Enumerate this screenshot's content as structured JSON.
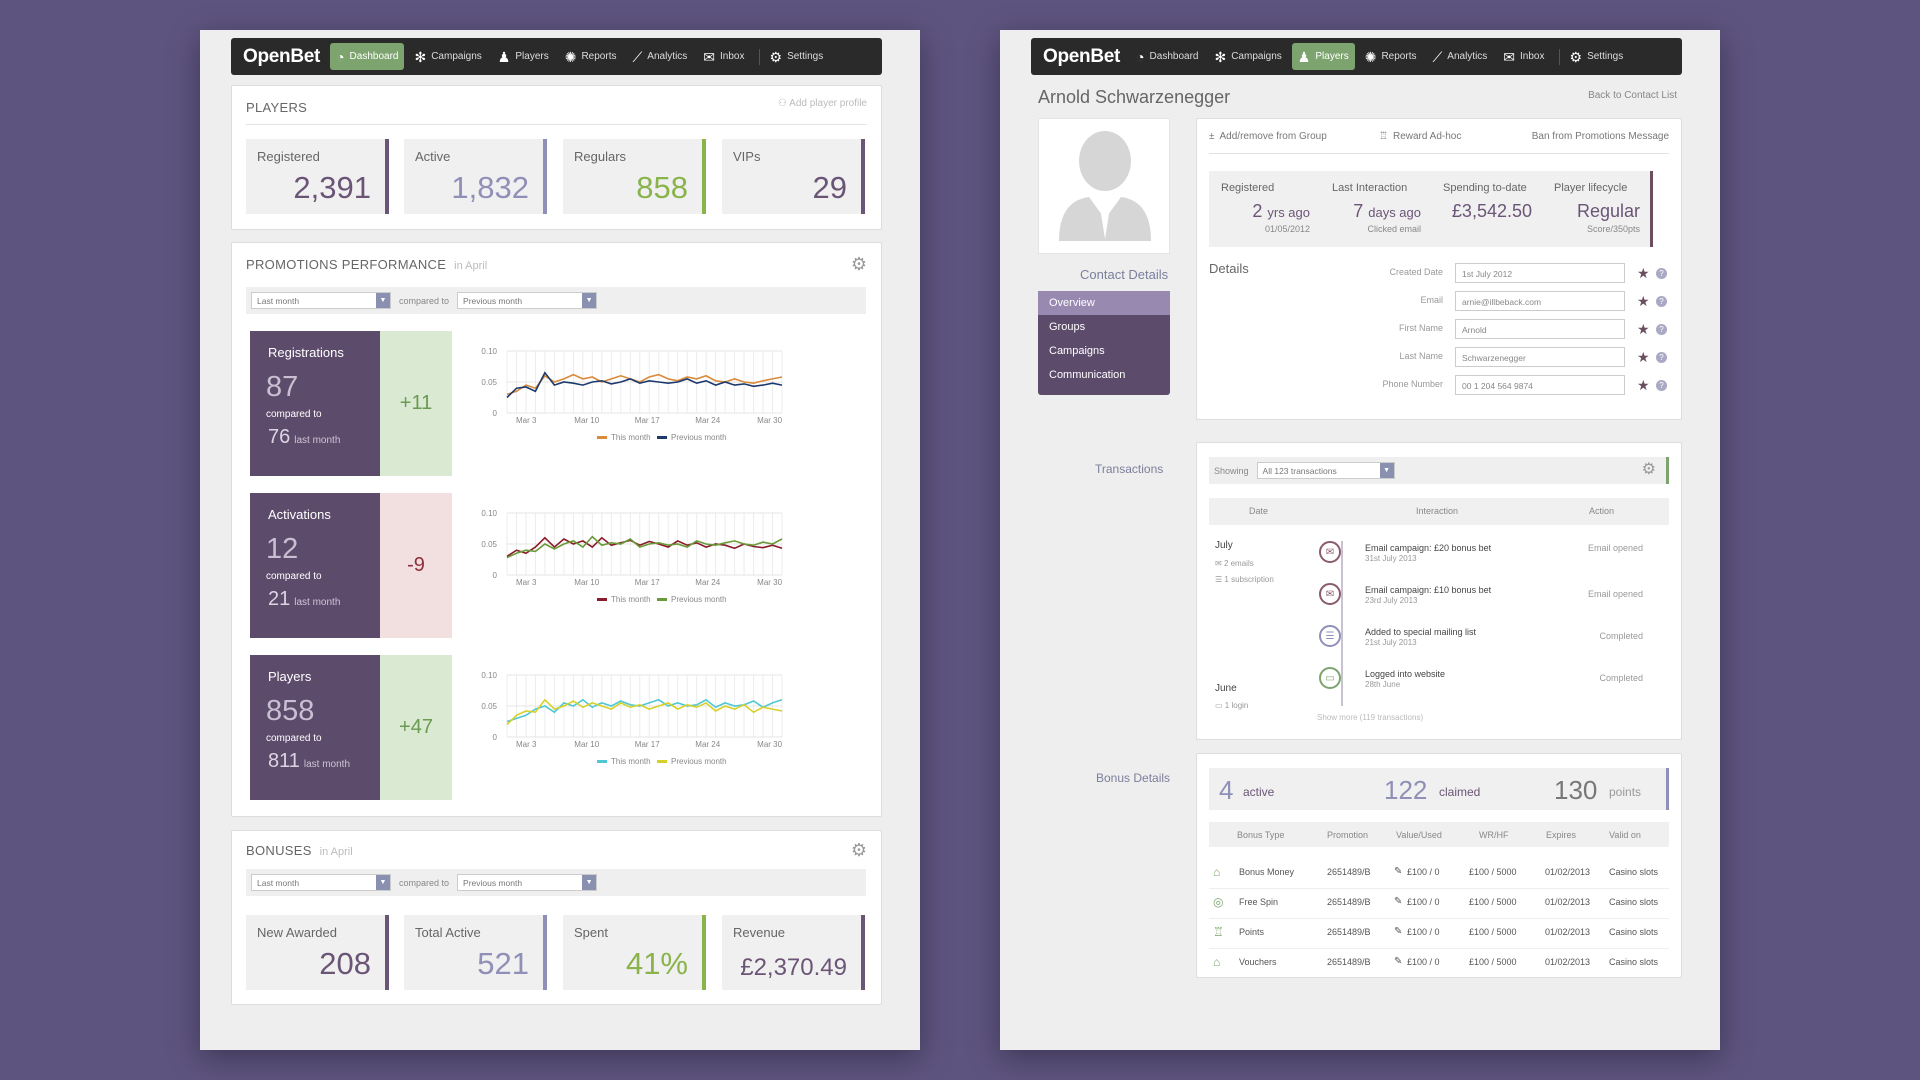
{
  "left": {
    "nav": {
      "logo": "OpenBet",
      "items": [
        {
          "label": "Dashboard",
          "icon": "dashboard-icon",
          "active": true
        },
        {
          "label": "Campaigns",
          "icon": "gear-icon"
        },
        {
          "label": "Players",
          "icon": "user-icon"
        },
        {
          "label": "Reports",
          "icon": "badge-icon"
        },
        {
          "label": "Analytics",
          "icon": "analytics-icon"
        },
        {
          "label": "Inbox",
          "icon": "mail-icon"
        },
        {
          "label": "Settings",
          "icon": "gear-icon"
        }
      ]
    },
    "players": {
      "title": "PLAYERS",
      "add_link": "Add player profile",
      "stats": [
        {
          "label": "Registered",
          "value": "2,391",
          "color": "#6b5577"
        },
        {
          "label": "Active",
          "value": "1,832",
          "color": "#8f8fb7"
        },
        {
          "label": "Regulars",
          "value": "858",
          "color": "#8ab34c"
        },
        {
          "label": "VIPs",
          "value": "29",
          "color": "#6b5577"
        }
      ]
    },
    "promotions": {
      "title": "PROMOTIONS PERFORMANCE",
      "subtitle": "in April",
      "filter": {
        "left": "Last month",
        "compared": "compared to",
        "right": "Previous month"
      },
      "blocks": [
        {
          "title": "Registrations",
          "value": "87",
          "compared": "compared to",
          "prev": "76",
          "prev_label": "last month",
          "delta": "+11"
        },
        {
          "title": "Activations",
          "value": "12",
          "compared": "compared to",
          "prev": "21",
          "prev_label": "last month",
          "delta": "-9"
        },
        {
          "title": "Players",
          "value": "858",
          "compared": "compared to",
          "prev": "811",
          "prev_label": "last month",
          "delta": "+47"
        }
      ]
    },
    "bonuses": {
      "title": "BONUSES",
      "subtitle": "in April",
      "filter": {
        "left": "Last month",
        "compared": "compared to",
        "right": "Previous month"
      },
      "stats": [
        {
          "label": "New Awarded",
          "value": "208",
          "color": "#6b5577"
        },
        {
          "label": "Total Active",
          "value": "521",
          "color": "#8f8fb7"
        },
        {
          "label": "Spent",
          "value": "41%",
          "color": "#8ab34c"
        },
        {
          "label": "Revenue",
          "value": "£2,370.49",
          "color": "#6b5577"
        }
      ]
    }
  },
  "chart_data": [
    {
      "type": "line",
      "x_ticks": [
        "Mar 3",
        "Mar 10",
        "Mar 17",
        "Mar 24",
        "Mar 30"
      ],
      "y_ticks": [
        "0.10",
        "0.05",
        "0"
      ],
      "ylim": [
        0,
        0.1
      ],
      "grid": true,
      "series": [
        {
          "name": "This month",
          "color": "#d98a3a",
          "values": [
            0.03,
            0.035,
            0.045,
            0.04,
            0.06,
            0.05,
            0.055,
            0.062,
            0.055,
            0.058,
            0.05,
            0.055,
            0.06,
            0.055,
            0.05,
            0.058,
            0.062,
            0.055,
            0.052,
            0.058,
            0.055,
            0.06,
            0.052,
            0.05,
            0.055,
            0.05,
            0.048,
            0.052,
            0.055,
            0.058
          ]
        },
        {
          "name": "Previous month",
          "color": "#1d3a6e",
          "values": [
            0.025,
            0.04,
            0.042,
            0.035,
            0.065,
            0.045,
            0.05,
            0.048,
            0.045,
            0.05,
            0.052,
            0.047,
            0.05,
            0.055,
            0.048,
            0.052,
            0.05,
            0.048,
            0.05,
            0.055,
            0.048,
            0.052,
            0.045,
            0.05,
            0.045,
            0.047,
            0.043,
            0.045,
            0.048,
            0.045
          ]
        }
      ]
    },
    {
      "type": "line",
      "x_ticks": [
        "Mar 3",
        "Mar 10",
        "Mar 17",
        "Mar 24",
        "Mar 30"
      ],
      "y_ticks": [
        "0.10",
        "0.05",
        "0"
      ],
      "ylim": [
        0,
        0.1
      ],
      "grid": true,
      "series": [
        {
          "name": "This month",
          "color": "#8a1d2a",
          "values": [
            0.03,
            0.04,
            0.035,
            0.045,
            0.06,
            0.045,
            0.058,
            0.05,
            0.055,
            0.045,
            0.06,
            0.048,
            0.052,
            0.056,
            0.048,
            0.054,
            0.05,
            0.045,
            0.055,
            0.048,
            0.052,
            0.045,
            0.05,
            0.048,
            0.043,
            0.05,
            0.046,
            0.044,
            0.048,
            0.043
          ]
        },
        {
          "name": "Previous month",
          "color": "#6a9b3a",
          "values": [
            0.028,
            0.035,
            0.04,
            0.038,
            0.05,
            0.042,
            0.05,
            0.055,
            0.045,
            0.062,
            0.048,
            0.052,
            0.05,
            0.058,
            0.045,
            0.05,
            0.052,
            0.048,
            0.05,
            0.045,
            0.055,
            0.05,
            0.048,
            0.052,
            0.055,
            0.05,
            0.048,
            0.053,
            0.05,
            0.058
          ]
        }
      ]
    },
    {
      "type": "line",
      "x_ticks": [
        "Mar 3",
        "Mar 10",
        "Mar 17",
        "Mar 24",
        "Mar 30"
      ],
      "y_ticks": [
        "0.10",
        "0.05",
        "0"
      ],
      "ylim": [
        0,
        0.1
      ],
      "grid": true,
      "series": [
        {
          "name": "This month",
          "color": "#4fc7d6",
          "values": [
            0.025,
            0.03,
            0.035,
            0.045,
            0.05,
            0.04,
            0.055,
            0.05,
            0.06,
            0.048,
            0.055,
            0.05,
            0.058,
            0.052,
            0.05,
            0.055,
            0.06,
            0.05,
            0.055,
            0.05,
            0.052,
            0.06,
            0.048,
            0.055,
            0.05,
            0.052,
            0.058,
            0.048,
            0.055,
            0.06
          ]
        },
        {
          "name": "Previous month",
          "color": "#d6d12a",
          "values": [
            0.02,
            0.035,
            0.042,
            0.04,
            0.06,
            0.045,
            0.05,
            0.058,
            0.048,
            0.055,
            0.05,
            0.045,
            0.055,
            0.048,
            0.052,
            0.045,
            0.05,
            0.055,
            0.045,
            0.052,
            0.048,
            0.055,
            0.042,
            0.05,
            0.045,
            0.052,
            0.04,
            0.048,
            0.045,
            0.042
          ]
        }
      ]
    }
  ],
  "right": {
    "nav": {
      "logo": "OpenBet",
      "items": [
        {
          "label": "Dashboard",
          "icon": "dashboard-icon"
        },
        {
          "label": "Campaigns",
          "icon": "gear-icon"
        },
        {
          "label": "Players",
          "icon": "user-icon",
          "active": true
        },
        {
          "label": "Reports",
          "icon": "badge-icon"
        },
        {
          "label": "Analytics",
          "icon": "analytics-icon"
        },
        {
          "label": "Inbox",
          "icon": "mail-icon"
        },
        {
          "label": "Settings",
          "icon": "gear-icon"
        }
      ]
    },
    "player_name": "Arnold Schwarzenegger",
    "back_link": "Back to Contact List",
    "contact_details": "Contact Details",
    "menu": [
      "Overview",
      "Groups",
      "Campaigns",
      "Communication"
    ],
    "actions": [
      "Add/remove from Group",
      "Reward Ad-hoc",
      "Ban from Promotions Message"
    ],
    "summary": [
      {
        "label": "Registered",
        "value": "2",
        "unit": "yrs ago",
        "sub": "01/05/2012"
      },
      {
        "label": "Last Interaction",
        "value": "7",
        "unit": "days ago",
        "sub": "Clicked email"
      },
      {
        "label": "Spending to-date",
        "value": "£3,542.50",
        "unit": "",
        "sub": ""
      },
      {
        "label": "Player lifecycle",
        "value": "Regular",
        "unit": "",
        "sub": "Score/350pts"
      }
    ],
    "details_title": "Details",
    "details": [
      {
        "label": "Created Date",
        "value": "1st July 2012"
      },
      {
        "label": "Email",
        "value": "arnie@illbeback.com"
      },
      {
        "label": "First Name",
        "value": "Arnold"
      },
      {
        "label": "Last Name",
        "value": "Schwarzenegger"
      },
      {
        "label": "Phone Number",
        "value": "00 1 204 564 9874"
      }
    ],
    "transactions": {
      "section_label": "Transactions",
      "showing": "Showing",
      "select": "All 123 transactions",
      "headers": [
        "Date",
        "Interaction",
        "Action"
      ],
      "months": [
        {
          "name": "July",
          "stats": [
            "2 emails",
            "1 subscription"
          ]
        },
        {
          "name": "June",
          "stats": [
            "1 login"
          ]
        }
      ],
      "entries": [
        {
          "title": "Email campaign: £20 bonus bet",
          "date": "31st July 2013",
          "action": "Email opened",
          "icon": "mail-icon"
        },
        {
          "title": "Email campaign: £10 bonus bet",
          "date": "23rd July 2013",
          "action": "Email opened",
          "icon": "mail-icon"
        },
        {
          "title": "Added to special mailing list",
          "date": "21st July 2013",
          "action": "Completed",
          "icon": "list-icon"
        },
        {
          "title": "Logged into website",
          "date": "28th June",
          "action": "Completed",
          "icon": "laptop-icon"
        }
      ],
      "show_more": "Show more (119 transactions)"
    },
    "bonus": {
      "section_label": "Bonus Details",
      "summary": [
        {
          "value": "4",
          "label": "active"
        },
        {
          "value": "122",
          "label": "claimed"
        },
        {
          "value": "130",
          "label": "points"
        }
      ],
      "headers": [
        "Bonus Type",
        "Promotion",
        "Value/Used",
        "WR/HF",
        "Expires",
        "Valid on"
      ],
      "rows": [
        {
          "type": "Bonus Money",
          "promotion": "2651489/B",
          "value": "£100 / 0",
          "wr": "£100 / 5000",
          "expires": "01/02/2013",
          "valid": "Casino slots"
        },
        {
          "type": "Free Spin",
          "promotion": "2651489/B",
          "value": "£100 / 0",
          "wr": "£100 / 5000",
          "expires": "01/02/2013",
          "valid": "Casino slots"
        },
        {
          "type": "Points",
          "promotion": "2651489/B",
          "value": "£100 / 0",
          "wr": "£100 / 5000",
          "expires": "01/02/2013",
          "valid": "Casino slots"
        },
        {
          "type": "Vouchers",
          "promotion": "2651489/B",
          "value": "£100 / 0",
          "wr": "£100 / 5000",
          "expires": "01/02/2013",
          "valid": "Casino slots"
        }
      ]
    }
  }
}
